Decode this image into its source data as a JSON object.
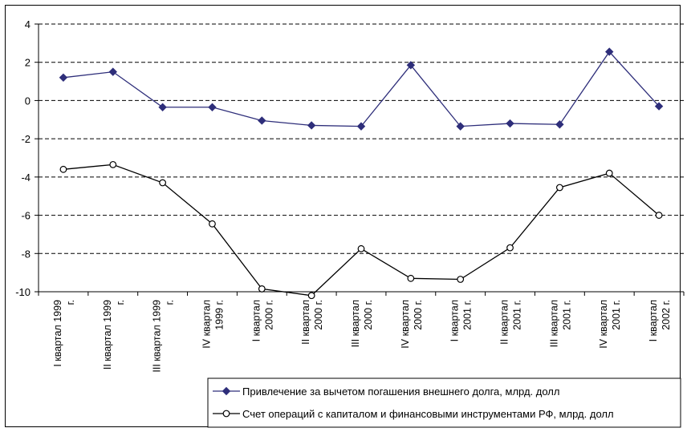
{
  "chart_data": {
    "type": "line",
    "categories": [
      [
        "I квартал 1999",
        "г."
      ],
      [
        "II квартал 1999",
        "г."
      ],
      [
        "III квартал 1999",
        "г."
      ],
      [
        "IV квартал",
        "1999 г."
      ],
      [
        "I квартал",
        "2000 г."
      ],
      [
        "II квартал",
        "2000 г."
      ],
      [
        "III квартал",
        "2000 г."
      ],
      [
        "IV квартал",
        "2000 г."
      ],
      [
        "I квартал",
        "2001 г."
      ],
      [
        "II квартал",
        "2001 г."
      ],
      [
        "III квартал",
        "2001 г."
      ],
      [
        "IV квартал",
        "2001 г."
      ],
      [
        "I квартал",
        "2002 г."
      ]
    ],
    "ylim": [
      -10,
      4
    ],
    "yticks": [
      -10,
      -8,
      -6,
      -4,
      -2,
      0,
      2,
      4
    ],
    "grid": "horizontal dashed",
    "legend_position": "bottom-right",
    "series": [
      {
        "name": "Привлечение за вычетом погашения внешнего долга, млрд. долл",
        "color": "#2e2e7a",
        "marker": "diamond",
        "values": [
          1.2,
          1.5,
          -0.35,
          -0.35,
          -1.05,
          -1.3,
          -1.35,
          1.85,
          -1.35,
          -1.2,
          -1.25,
          2.55,
          -0.3
        ]
      },
      {
        "name": "Счет операций с капиталом и финансовыми инструментами РФ, млрд. долл",
        "color": "#000000",
        "marker": "circle",
        "values": [
          -3.6,
          -3.35,
          -4.3,
          -6.45,
          -9.85,
          -10.2,
          -7.75,
          -9.3,
          -9.35,
          -7.7,
          -4.55,
          -3.8,
          -6.0
        ]
      }
    ]
  }
}
